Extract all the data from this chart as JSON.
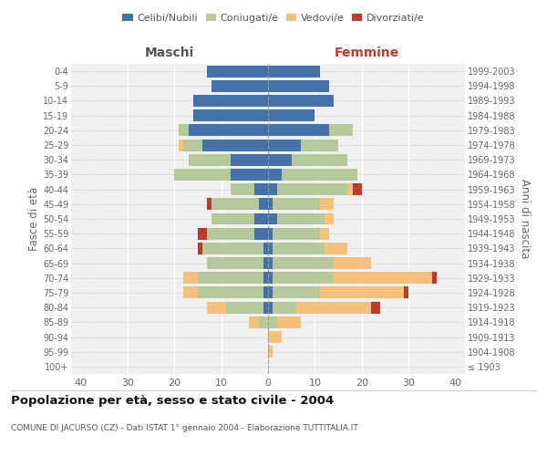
{
  "age_groups": [
    "100+",
    "95-99",
    "90-94",
    "85-89",
    "80-84",
    "75-79",
    "70-74",
    "65-69",
    "60-64",
    "55-59",
    "50-54",
    "45-49",
    "40-44",
    "35-39",
    "30-34",
    "25-29",
    "20-24",
    "15-19",
    "10-14",
    "5-9",
    "0-4"
  ],
  "birth_years": [
    "≤ 1903",
    "1904-1908",
    "1909-1913",
    "1914-1918",
    "1919-1923",
    "1924-1928",
    "1929-1933",
    "1934-1938",
    "1939-1943",
    "1944-1948",
    "1949-1953",
    "1954-1958",
    "1959-1963",
    "1964-1968",
    "1969-1973",
    "1974-1978",
    "1979-1983",
    "1984-1988",
    "1989-1993",
    "1994-1998",
    "1999-2003"
  ],
  "maschi": {
    "celibi": [
      0,
      0,
      0,
      0,
      1,
      1,
      1,
      1,
      1,
      3,
      3,
      2,
      3,
      8,
      8,
      14,
      17,
      16,
      16,
      12,
      13
    ],
    "coniugati": [
      0,
      0,
      0,
      2,
      8,
      14,
      14,
      12,
      13,
      10,
      9,
      10,
      5,
      12,
      9,
      4,
      2,
      0,
      0,
      0,
      0
    ],
    "vedovi": [
      0,
      0,
      0,
      2,
      4,
      3,
      3,
      0,
      0,
      0,
      0,
      0,
      0,
      0,
      0,
      1,
      0,
      0,
      0,
      0,
      0
    ],
    "divorziati": [
      0,
      0,
      0,
      0,
      0,
      0,
      0,
      0,
      1,
      2,
      0,
      1,
      0,
      0,
      0,
      0,
      0,
      0,
      0,
      0,
      0
    ]
  },
  "femmine": {
    "nubili": [
      0,
      0,
      0,
      0,
      1,
      1,
      1,
      1,
      1,
      1,
      2,
      1,
      2,
      3,
      5,
      7,
      13,
      10,
      14,
      13,
      11
    ],
    "coniugate": [
      0,
      0,
      0,
      2,
      5,
      10,
      13,
      13,
      11,
      10,
      10,
      10,
      15,
      16,
      12,
      8,
      5,
      0,
      0,
      0,
      0
    ],
    "vedove": [
      0,
      1,
      3,
      5,
      16,
      18,
      21,
      8,
      5,
      2,
      2,
      3,
      1,
      0,
      0,
      0,
      0,
      0,
      0,
      0,
      0
    ],
    "divorziate": [
      0,
      0,
      0,
      0,
      2,
      1,
      1,
      0,
      0,
      0,
      0,
      0,
      2,
      0,
      0,
      0,
      0,
      0,
      0,
      0,
      0
    ]
  },
  "colors": {
    "celibi": "#4472a8",
    "coniugati": "#b5c99a",
    "vedovi": "#f5c07a",
    "divorziati": "#c0392b"
  },
  "xlim": 42,
  "title": "Popolazione per età, sesso e stato civile - 2004",
  "subtitle": "COMUNE DI JACURSO (CZ) - Dati ISTAT 1° gennaio 2004 - Elaborazione TUTTITALIA.IT",
  "ylabel": "Fasce di età",
  "ylabel_right": "Anni di nascita",
  "xlabel_left": "Maschi",
  "xlabel_right": "Femmine",
  "legend_labels": [
    "Celibi/Nubili",
    "Coniugati/e",
    "Vedovi/e",
    "Divorziati/e"
  ],
  "bg_color": "#f0f0f0"
}
